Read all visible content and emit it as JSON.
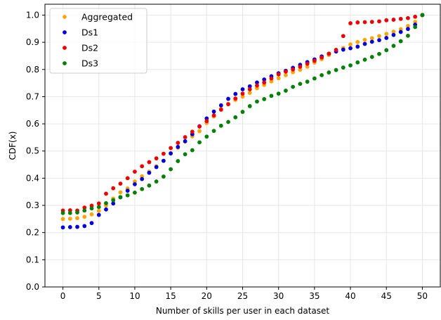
{
  "chart_data": {
    "type": "scatter",
    "title": "",
    "xlabel": "Number of skills per user in each dataset",
    "ylabel": "CDF(x)",
    "xlim": [
      -2.5,
      52.5
    ],
    "ylim": [
      0,
      1.04
    ],
    "xticks": [
      0,
      5,
      10,
      15,
      20,
      25,
      30,
      35,
      40,
      45,
      50
    ],
    "yticks": [
      0.0,
      0.1,
      0.2,
      0.3,
      0.4,
      0.5,
      0.6,
      0.7,
      0.8,
      0.9,
      1.0
    ],
    "grid": true,
    "legend_position": "top-left",
    "x": [
      0,
      1,
      2,
      3,
      4,
      5,
      6,
      7,
      8,
      9,
      10,
      11,
      12,
      13,
      14,
      15,
      16,
      17,
      18,
      19,
      20,
      21,
      22,
      23,
      24,
      25,
      26,
      27,
      28,
      29,
      30,
      31,
      32,
      33,
      34,
      35,
      36,
      37,
      38,
      39,
      40,
      41,
      42,
      43,
      44,
      45,
      46,
      47,
      48,
      49,
      50
    ],
    "series": [
      {
        "name": "Aggregated",
        "color": "#ffa500",
        "values": [
          0.25,
          0.251,
          0.253,
          0.258,
          0.267,
          0.28,
          0.3,
          0.325,
          0.348,
          0.362,
          0.388,
          0.407,
          0.424,
          0.444,
          0.464,
          0.492,
          0.512,
          0.535,
          0.554,
          0.573,
          0.603,
          0.627,
          0.655,
          0.674,
          0.688,
          0.7,
          0.714,
          0.731,
          0.743,
          0.756,
          0.768,
          0.779,
          0.79,
          0.799,
          0.81,
          0.825,
          0.838,
          0.853,
          0.866,
          0.879,
          0.892,
          0.901,
          0.909,
          0.915,
          0.923,
          0.931,
          0.939,
          0.948,
          0.96,
          0.975,
          1.0
        ]
      },
      {
        "name": "Ds1",
        "color": "#0000dd",
        "values": [
          0.219,
          0.22,
          0.221,
          0.224,
          0.235,
          0.265,
          0.285,
          0.307,
          0.33,
          0.354,
          0.378,
          0.397,
          0.42,
          0.441,
          0.464,
          0.491,
          0.515,
          0.536,
          0.562,
          0.591,
          0.62,
          0.645,
          0.668,
          0.692,
          0.71,
          0.727,
          0.738,
          0.752,
          0.763,
          0.775,
          0.786,
          0.795,
          0.806,
          0.817,
          0.827,
          0.837,
          0.848,
          0.858,
          0.866,
          0.873,
          0.878,
          0.884,
          0.894,
          0.902,
          0.908,
          0.916,
          0.927,
          0.938,
          0.949,
          0.965,
          1.0
        ]
      },
      {
        "name": "Ds2",
        "color": "#ee0000",
        "values": [
          0.281,
          0.282,
          0.281,
          0.292,
          0.299,
          0.307,
          0.343,
          0.363,
          0.38,
          0.4,
          0.424,
          0.444,
          0.459,
          0.473,
          0.49,
          0.511,
          0.53,
          0.551,
          0.571,
          0.59,
          0.61,
          0.631,
          0.652,
          0.672,
          0.693,
          0.711,
          0.727,
          0.741,
          0.752,
          0.767,
          0.782,
          0.792,
          0.8,
          0.81,
          0.821,
          0.832,
          0.844,
          0.858,
          0.872,
          0.923,
          0.97,
          0.973,
          0.974,
          0.975,
          0.977,
          0.981,
          0.983,
          0.986,
          0.989,
          0.994,
          1.0
        ]
      },
      {
        "name": "Ds3",
        "color": "#008000",
        "values": [
          0.272,
          0.272,
          0.274,
          0.281,
          0.289,
          0.294,
          0.308,
          0.319,
          0.33,
          0.337,
          0.347,
          0.36,
          0.373,
          0.388,
          0.406,
          0.433,
          0.463,
          0.488,
          0.503,
          0.532,
          0.553,
          0.574,
          0.593,
          0.607,
          0.624,
          0.644,
          0.665,
          0.682,
          0.691,
          0.703,
          0.711,
          0.722,
          0.736,
          0.747,
          0.755,
          0.767,
          0.779,
          0.789,
          0.798,
          0.807,
          0.815,
          0.826,
          0.836,
          0.846,
          0.857,
          0.871,
          0.887,
          0.904,
          0.924,
          0.956,
          1.0
        ]
      }
    ]
  }
}
